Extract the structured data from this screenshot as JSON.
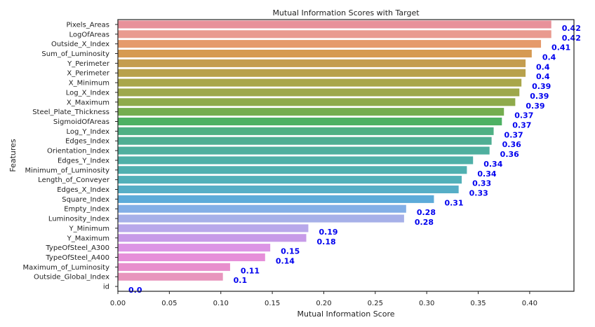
{
  "chart_data": {
    "type": "bar",
    "orientation": "horizontal",
    "title": "Mutual Information Scores with Target",
    "xlabel": "Mutual Information Score",
    "ylabel": "Features",
    "xlim": [
      0.0,
      0.443
    ],
    "xticks": [
      "0.00",
      "0.05",
      "0.10",
      "0.15",
      "0.20",
      "0.25",
      "0.30",
      "0.35",
      "0.40"
    ],
    "grid": false,
    "legend": "none",
    "data_label_color": "#0000ee",
    "categories": [
      "Pixels_Areas",
      "LogOfAreas",
      "Outside_X_Index",
      "Sum_of_Luminosity",
      "Y_Perimeter",
      "X_Perimeter",
      "X_Minimum",
      "Log_X_Index",
      "X_Maximum",
      "Steel_Plate_Thickness",
      "SigmoidOfAreas",
      "Log_Y_Index",
      "Edges_Index",
      "Orientation_Index",
      "Edges_Y_Index",
      "Minimum_of_Luminosity",
      "Length_of_Conveyer",
      "Edges_X_Index",
      "Square_Index",
      "Empty_Index",
      "Luminosity_Index",
      "Y_Minimum",
      "Y_Maximum",
      "TypeOfSteel_A300",
      "TypeOfSteel_A400",
      "Maximum_of_Luminosity",
      "Outside_Global_Index",
      "id"
    ],
    "values": [
      0.421,
      0.421,
      0.411,
      0.402,
      0.396,
      0.396,
      0.392,
      0.39,
      0.386,
      0.375,
      0.373,
      0.365,
      0.363,
      0.361,
      0.345,
      0.339,
      0.334,
      0.331,
      0.307,
      0.28,
      0.278,
      0.185,
      0.183,
      0.148,
      0.143,
      0.109,
      0.102,
      0.0
    ],
    "data_labels": [
      "0.42",
      "0.42",
      "0.41",
      "0.4",
      "0.4",
      "0.4",
      "0.39",
      "0.39",
      "0.39",
      "0.37",
      "0.37",
      "0.37",
      "0.36",
      "0.36",
      "0.34",
      "0.34",
      "0.33",
      "0.33",
      "0.31",
      "0.28",
      "0.28",
      "0.19",
      "0.18",
      "0.15",
      "0.14",
      "0.11",
      "0.1",
      "0.0"
    ],
    "colors": [
      "#e8919a",
      "#e99a8f",
      "#e59a6b",
      "#d69a52",
      "#c49d4f",
      "#b8a14c",
      "#a9a64a",
      "#9ea84b",
      "#8faa4b",
      "#74ad4f",
      "#4db163",
      "#4fb084",
      "#4fae93",
      "#4faf9e",
      "#4fb0a8",
      "#50b0b0",
      "#52b0b9",
      "#56aec6",
      "#5cabd9",
      "#83afe6",
      "#a6b0e8",
      "#b8a8ea",
      "#c79be8",
      "#dc95e5",
      "#e68fd9",
      "#e88fcd",
      "#e895bd",
      "#e89ab0"
    ]
  }
}
